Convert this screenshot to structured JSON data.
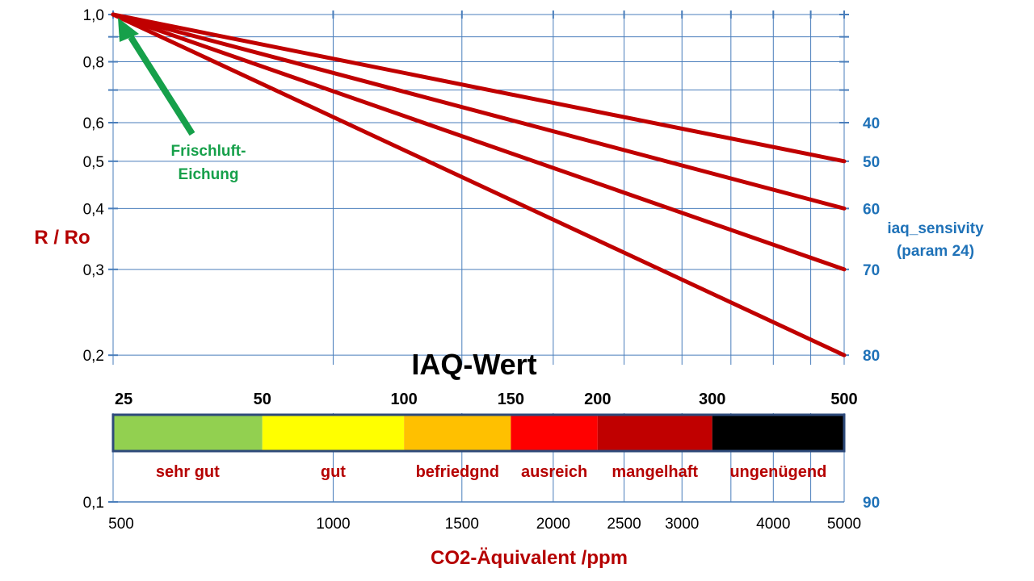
{
  "chart_data": {
    "type": "line",
    "title": "",
    "xlabel": "CO2-Äquivalent /ppm",
    "ylabel": "R / Ro",
    "x_scale": "log",
    "y_scale": "log",
    "xlim": [
      500,
      5000
    ],
    "ylim": [
      0.1,
      1.0
    ],
    "grid": true,
    "x_ticks": [
      {
        "value": 500,
        "label": "500"
      },
      {
        "value": 1000,
        "label": "1000"
      },
      {
        "value": 1500,
        "label": "1500"
      },
      {
        "value": 2000,
        "label": "2000"
      },
      {
        "value": 2500,
        "label": "2500"
      },
      {
        "value": 3000,
        "label": "3000"
      },
      {
        "value": 4000,
        "label": "4000"
      },
      {
        "value": 5000,
        "label": "5000"
      }
    ],
    "x_gridlines": [
      500,
      1000,
      1500,
      2000,
      2500,
      3000,
      3500,
      4000,
      4500,
      5000
    ],
    "y_ticks": [
      {
        "value": 1.0,
        "label": "1,0"
      },
      {
        "value": 0.8,
        "label": "0,8"
      },
      {
        "value": 0.6,
        "label": "0,6"
      },
      {
        "value": 0.5,
        "label": "0,5"
      },
      {
        "value": 0.4,
        "label": "0,4"
      },
      {
        "value": 0.3,
        "label": "0,3"
      },
      {
        "value": 0.2,
        "label": "0,2"
      },
      {
        "value": 0.1,
        "label": "0,1"
      }
    ],
    "y_gridlines": [
      1.0,
      0.9,
      0.8,
      0.7,
      0.6,
      0.5,
      0.4,
      0.3,
      0.2
    ],
    "series": [
      {
        "x": [
          500,
          5000
        ],
        "y": [
          1.0,
          0.5
        ],
        "color": "#c00000"
      },
      {
        "x": [
          500,
          5000
        ],
        "y": [
          1.0,
          0.4
        ],
        "color": "#c00000"
      },
      {
        "x": [
          500,
          5000
        ],
        "y": [
          1.0,
          0.3
        ],
        "color": "#c00000"
      },
      {
        "x": [
          500,
          5000
        ],
        "y": [
          1.0,
          0.2
        ],
        "color": "#c00000"
      }
    ],
    "right_axis": {
      "title_lines": [
        "iaq_sensivity",
        "(param 24)"
      ],
      "ticks": [
        {
          "y": 0.6,
          "label": "40"
        },
        {
          "y": 0.5,
          "label": "50"
        },
        {
          "y": 0.4,
          "label": "60"
        },
        {
          "y": 0.3,
          "label": "70"
        },
        {
          "y": 0.2,
          "label": "80"
        },
        {
          "y": 0.1,
          "label": "90"
        }
      ],
      "color": "#1f72b8"
    },
    "annotation": {
      "text_lines": [
        "Frischluft-",
        "Eichung"
      ],
      "points_to": {
        "x": 500,
        "y": 1.0
      },
      "color": "#16a04a"
    },
    "iaq_scale": {
      "title": "IAQ-Wert",
      "bands": [
        {
          "from": 25,
          "to": 50,
          "x_from": 500,
          "x_to": 800,
          "color": "#92d050",
          "rating": "sehr gut"
        },
        {
          "from": 50,
          "to": 100,
          "x_from": 800,
          "x_to": 1250,
          "color": "#ffff00",
          "rating": "gut"
        },
        {
          "from": 100,
          "to": 150,
          "x_from": 1250,
          "x_to": 1750,
          "color": "#ffc000",
          "rating": "befriedgnd"
        },
        {
          "from": 150,
          "to": 200,
          "x_from": 1750,
          "x_to": 2300,
          "color": "#ff0000",
          "rating": "ausreich"
        },
        {
          "from": 200,
          "to": 300,
          "x_from": 2300,
          "x_to": 3300,
          "color": "#c00000",
          "rating": "mangelhaft"
        },
        {
          "from": 300,
          "to": 500,
          "x_from": 3300,
          "x_to": 5000,
          "color": "#000000",
          "rating": "ungenügend"
        }
      ],
      "tick_labels": [
        "25",
        "50",
        "100",
        "150",
        "200",
        "300",
        "500"
      ],
      "border_color": "#2e4a7a"
    }
  }
}
